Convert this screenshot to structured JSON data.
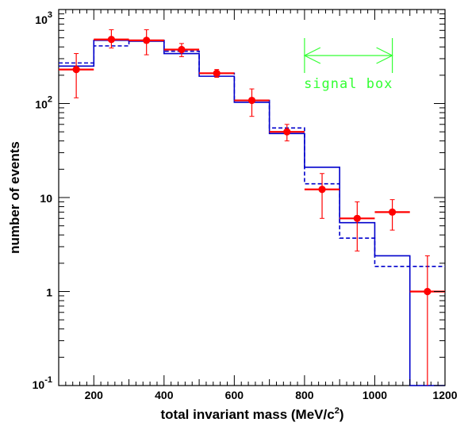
{
  "chart_data": {
    "type": "line",
    "title": "",
    "xlabel": "total invariant mass (MeV/c",
    "xlabel_sup": "2",
    "xlabel_close": ")",
    "ylabel": "number of events",
    "xlim": [
      100,
      1200
    ],
    "ylim": [
      0.1,
      1000
    ],
    "yscale": "log",
    "grid": false,
    "x_ticks": [
      {
        "value": 200,
        "label": "200"
      },
      {
        "value": 400,
        "label": "400"
      },
      {
        "value": 600,
        "label": "600"
      },
      {
        "value": 800,
        "label": "800"
      },
      {
        "value": 1000,
        "label": "1000"
      },
      {
        "value": 1200,
        "label": "1200"
      }
    ],
    "y_ticks": [
      {
        "value": 0.1,
        "base": "10",
        "exp": "-1"
      },
      {
        "value": 1,
        "base": "1",
        "exp": ""
      },
      {
        "value": 10,
        "base": "10",
        "exp": ""
      },
      {
        "value": 100,
        "base": "10",
        "exp": "2"
      },
      {
        "value": 1000,
        "base": "10",
        "exp": "3"
      }
    ],
    "bin_edges": [
      100,
      200,
      300,
      400,
      500,
      600,
      700,
      800,
      900,
      1000,
      1100,
      1200
    ],
    "series": [
      {
        "style": "histogram-solid",
        "color": "#0000cc",
        "values": [
          250,
          470,
          460,
          340,
          195,
          103,
          48,
          21,
          5.4,
          2.4,
          0.05
        ]
      },
      {
        "style": "histogram-dashed",
        "color": "#0000cc",
        "values": [
          270,
          410,
          470,
          360,
          210,
          108,
          55,
          14,
          3.7,
          1.85,
          1.85
        ]
      },
      {
        "style": "points-errorbars",
        "color": "#ff0000",
        "x": [
          150,
          250,
          350,
          450,
          550,
          650,
          750,
          850,
          950,
          1050,
          1150
        ],
        "y": [
          230,
          480,
          470,
          375,
          210,
          108,
          50,
          12.2,
          6.0,
          7.0,
          1.0
        ],
        "y_err_low": [
          115,
          90,
          140,
          60,
          20,
          35,
          10,
          6.2,
          3.3,
          2.5,
          0.9
        ],
        "y_err_high": [
          110,
          130,
          140,
          60,
          20,
          35,
          10,
          5.8,
          3.0,
          2.5,
          1.4
        ],
        "x_err": 50
      }
    ],
    "annotation": {
      "text": "signal box",
      "x_from": 800,
      "x_to": 1050,
      "color": "#33ff33"
    }
  }
}
